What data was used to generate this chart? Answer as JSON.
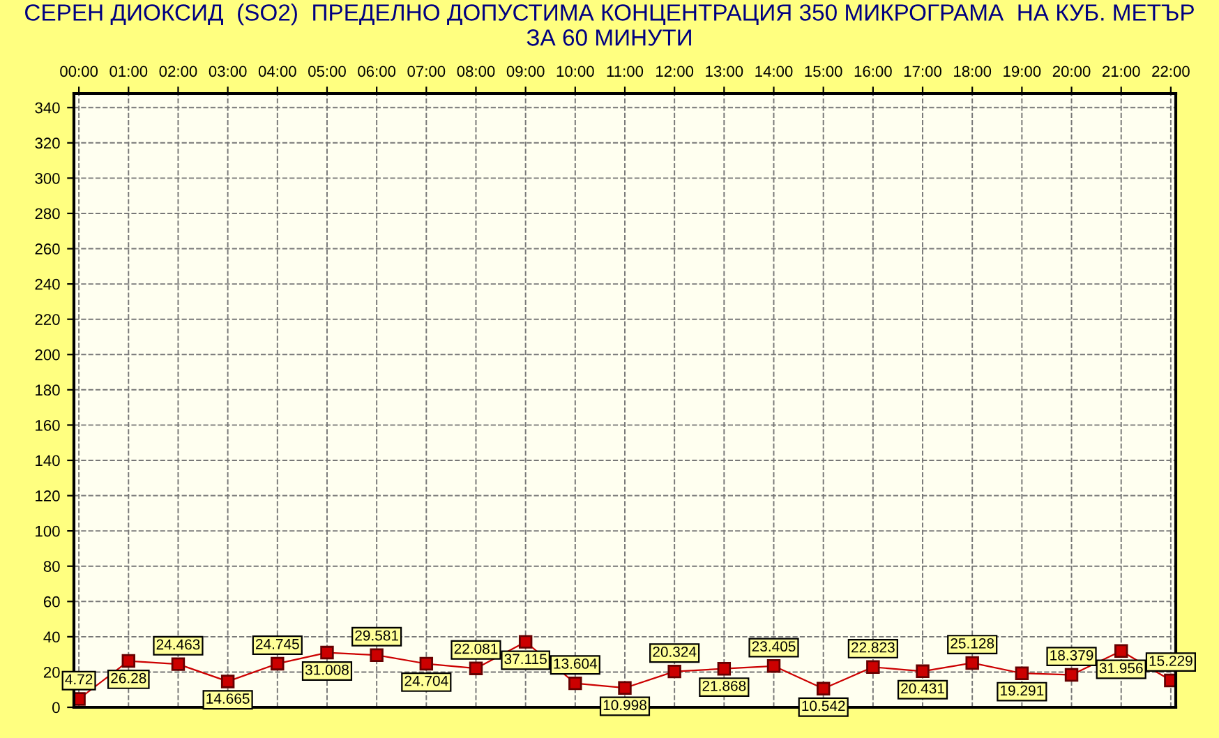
{
  "chart_data": {
    "type": "line",
    "title": "СЕРЕН ДИОКСИД  (SO2)  ПРЕДЕЛНО ДОПУСТИМА КОНЦЕНТРАЦИЯ 350 МИКРОГРАМА  НА КУБ. МЕТЪР\nЗА 60 МИНУТИ",
    "categories": [
      "00:00",
      "01:00",
      "02:00",
      "03:00",
      "04:00",
      "05:00",
      "06:00",
      "07:00",
      "08:00",
      "09:00",
      "10:00",
      "11:00",
      "12:00",
      "13:00",
      "14:00",
      "15:00",
      "16:00",
      "17:00",
      "18:00",
      "19:00",
      "20:00",
      "21:00",
      "22:00"
    ],
    "series": [
      {
        "color": "#cc0000",
        "values": [
          4.72,
          26.28,
          24.463,
          14.665,
          24.745,
          31.008,
          29.581,
          24.704,
          22.081,
          37.115,
          13.604,
          10.998,
          20.324,
          21.868,
          23.405,
          10.542,
          22.823,
          20.431,
          25.128,
          19.291,
          18.379,
          31.956,
          15.229
        ]
      }
    ],
    "ylim": [
      0,
      348
    ],
    "yticks": [
      0,
      20,
      40,
      60,
      80,
      100,
      120,
      140,
      160,
      180,
      200,
      220,
      240,
      260,
      280,
      300,
      320,
      340
    ],
    "grid": true,
    "marker": "square",
    "line_style": "solid",
    "data_labels": true,
    "legend": false
  }
}
